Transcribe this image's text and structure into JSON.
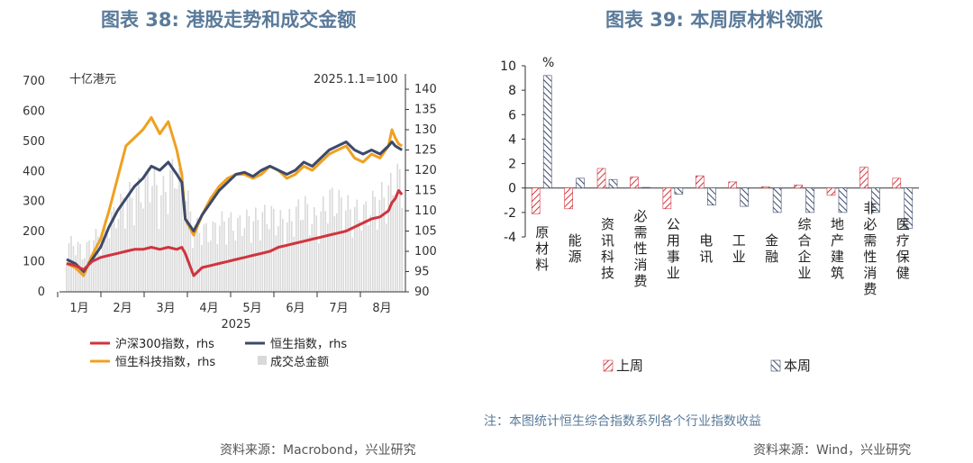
{
  "left": {
    "title": "图表 38: 港股走势和成交金额",
    "unit_left": "十亿港元",
    "unit_right": "2025.1.1=100",
    "source": "资料来源：Macrobond，兴业研究"
  },
  "right": {
    "title": "图表 39: 本周原材料领涨",
    "unit": "%",
    "note": "注：本图统计恒生综合指数系列各个行业指数收益",
    "source": "资料来源：Wind，兴业研究"
  },
  "chart_data": [
    {
      "type": "line",
      "title": "图表 38: 港股走势和成交金额",
      "x_year": "2025",
      "x_ticks": [
        "1月",
        "2月",
        "3月",
        "4月",
        "5月",
        "6月",
        "7月",
        "8月"
      ],
      "y_left": {
        "label": "十亿港元",
        "lim": [
          0,
          700
        ],
        "ticks": [
          0,
          100,
          200,
          300,
          400,
          500,
          600,
          700
        ]
      },
      "y_right": {
        "label": "2025.1.1=100",
        "lim": [
          90,
          142
        ],
        "ticks": [
          90,
          95,
          100,
          105,
          110,
          115,
          120,
          125,
          130,
          135,
          140
        ]
      },
      "colors": {
        "hs300": "#d0343e",
        "hsi": "#3c4a6a",
        "hstech": "#f0a020",
        "turnover": "#d9d9d9"
      },
      "legend": [
        "沪深300指数，rhs",
        "恒生指数，rhs",
        "恒生科技指数，rhs",
        "成交总金额"
      ],
      "series": [
        {
          "name": "沪深300指数，rhs",
          "axis": "right",
          "x": [
            0,
            0.25,
            0.5,
            0.75,
            1,
            1.25,
            1.5,
            1.75,
            2,
            2.25,
            2.5,
            2.75,
            3,
            3.25,
            3.4,
            3.5,
            3.75,
            4,
            4.25,
            4.5,
            4.75,
            5,
            5.25,
            5.5,
            5.75,
            6,
            6.25,
            6.5,
            6.75,
            7,
            7.25,
            7.5,
            7.75,
            8,
            8.25,
            8.5,
            8.75,
            9,
            9.25,
            9.5,
            9.6,
            9.7,
            9.8,
            9.9
          ],
          "y": [
            97,
            96.5,
            95.5,
            97.5,
            98.5,
            99,
            99.5,
            100,
            100.5,
            100.5,
            101,
            100.5,
            101,
            100.5,
            101,
            99.5,
            94,
            96,
            96.5,
            97,
            97.5,
            98,
            98.5,
            99,
            99.5,
            100,
            101,
            101.5,
            102,
            102.5,
            103,
            103.5,
            104,
            104.5,
            105,
            106,
            107,
            108,
            108.5,
            110,
            112,
            113,
            115,
            114
          ]
        },
        {
          "name": "恒生指数，rhs",
          "axis": "right",
          "x": [
            0,
            0.25,
            0.5,
            0.75,
            1,
            1.25,
            1.5,
            1.75,
            2,
            2.25,
            2.5,
            2.75,
            3,
            3.25,
            3.4,
            3.5,
            3.75,
            4,
            4.25,
            4.5,
            4.75,
            5,
            5.25,
            5.5,
            5.75,
            6,
            6.25,
            6.5,
            6.75,
            7,
            7.25,
            7.5,
            7.75,
            8,
            8.25,
            8.5,
            8.75,
            9,
            9.25,
            9.5,
            9.6,
            9.7,
            9.8,
            9.9
          ],
          "y": [
            98,
            97,
            95,
            98,
            101,
            106,
            110,
            113,
            116,
            118,
            121,
            120,
            122,
            119,
            117,
            108,
            105,
            109,
            112,
            115,
            117,
            119,
            119.5,
            118.5,
            120,
            121,
            120,
            119,
            120,
            122,
            121,
            123,
            125,
            126,
            127,
            125,
            124,
            125,
            124,
            126,
            127,
            126,
            125.5,
            125
          ]
        },
        {
          "name": "恒生科技指数，rhs",
          "axis": "right",
          "x": [
            0,
            0.25,
            0.5,
            0.75,
            1,
            1.25,
            1.5,
            1.75,
            2,
            2.25,
            2.5,
            2.75,
            3,
            3.25,
            3.4,
            3.5,
            3.75,
            4,
            4.25,
            4.5,
            4.75,
            5,
            5.25,
            5.5,
            5.75,
            6,
            6.25,
            6.5,
            6.75,
            7,
            7.25,
            7.5,
            7.75,
            8,
            8.25,
            8.5,
            8.75,
            9,
            9.25,
            9.5,
            9.6,
            9.7,
            9.8,
            9.9
          ],
          "y": [
            97,
            96,
            94,
            99,
            103,
            110,
            118,
            126,
            128,
            130,
            133,
            129,
            132,
            125,
            119,
            108,
            104,
            109,
            113,
            116,
            118,
            119,
            119,
            118,
            119,
            121,
            120,
            118,
            119,
            121,
            120,
            122,
            124,
            125,
            126,
            123,
            122,
            124,
            123,
            126,
            130,
            128,
            126.5,
            126
          ]
        },
        {
          "name": "成交总金额",
          "axis": "left",
          "style": "bars",
          "x": [
            0,
            0.25,
            0.5,
            0.75,
            1,
            1.25,
            1.5,
            1.75,
            2,
            2.25,
            2.5,
            2.75,
            3,
            3.25,
            3.4,
            3.5,
            3.75,
            4,
            4.25,
            4.5,
            4.75,
            5,
            5.25,
            5.5,
            5.75,
            6,
            6.25,
            6.5,
            6.75,
            7,
            7.25,
            7.5,
            7.75,
            8,
            8.25,
            8.5,
            8.75,
            9,
            9.25,
            9.5,
            9.6,
            9.7,
            9.8,
            9.9
          ],
          "y": [
            150,
            160,
            120,
            170,
            180,
            220,
            260,
            300,
            310,
            330,
            380,
            300,
            350,
            400,
            300,
            320,
            210,
            200,
            190,
            220,
            230,
            210,
            230,
            230,
            240,
            250,
            230,
            220,
            250,
            280,
            230,
            250,
            300,
            290,
            270,
            260,
            250,
            280,
            300,
            320,
            340,
            380,
            360,
            350
          ]
        }
      ]
    },
    {
      "type": "bar",
      "title": "图表 39: 本周原材料领涨",
      "unit": "%",
      "categories": [
        "原材料",
        "能源",
        "资讯科技",
        "必需性消费",
        "公用事业",
        "电讯",
        "工业",
        "金融",
        "综合企业",
        "地产建筑",
        "非必需性消费",
        "医疗保健"
      ],
      "ylim": [
        -4,
        10
      ],
      "yticks": [
        -4,
        -2,
        0,
        2,
        4,
        6,
        8,
        10
      ],
      "legend": [
        "上周",
        "本周"
      ],
      "colors": {
        "last_week": "#d0343e",
        "this_week": "#3c4a6a"
      },
      "series": [
        {
          "name": "上周",
          "values": [
            -2.1,
            -1.7,
            1.6,
            0.9,
            -1.7,
            1.0,
            0.5,
            0.1,
            0.25,
            -0.6,
            1.7,
            0.8
          ]
        },
        {
          "name": "本周",
          "values": [
            9.2,
            0.8,
            0.7,
            0.05,
            -0.5,
            -1.4,
            -1.5,
            -2.0,
            -2.0,
            -2.0,
            -2.0,
            -3.3
          ]
        }
      ]
    }
  ]
}
